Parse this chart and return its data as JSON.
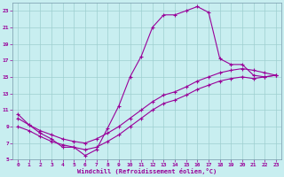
{
  "xlabel": "Windchill (Refroidissement éolien,°C)",
  "bg_color": "#c8eef0",
  "grid_color": "#9ecfcf",
  "line_color": "#990099",
  "xlim": [
    -0.5,
    23.5
  ],
  "ylim": [
    5,
    24
  ],
  "xticks": [
    0,
    1,
    2,
    3,
    4,
    5,
    6,
    7,
    8,
    9,
    10,
    11,
    12,
    13,
    14,
    15,
    16,
    17,
    18,
    19,
    20,
    21,
    22,
    23
  ],
  "yticks": [
    5,
    7,
    9,
    11,
    13,
    15,
    17,
    19,
    21,
    23
  ],
  "curve1_x": [
    0,
    1,
    2,
    3,
    4,
    5,
    6,
    7,
    8,
    9,
    10,
    11,
    12,
    13,
    14,
    15,
    16,
    17,
    18,
    19,
    20,
    21,
    22,
    23
  ],
  "curve1_y": [
    10.5,
    9.2,
    8.2,
    7.5,
    6.5,
    6.5,
    5.5,
    6.2,
    8.8,
    11.5,
    15.0,
    17.5,
    21.0,
    22.5,
    22.5,
    23.0,
    23.5,
    22.8,
    17.2,
    16.5,
    16.5,
    15.2,
    15.0,
    15.2
  ],
  "curve2_x": [
    0,
    1,
    2,
    3,
    4,
    5,
    6,
    7,
    8,
    9,
    10,
    11,
    12,
    13,
    14,
    15,
    16,
    17,
    18,
    19,
    20,
    21,
    22,
    23
  ],
  "curve2_y": [
    10.0,
    9.2,
    8.5,
    8.0,
    7.5,
    7.2,
    7.0,
    7.5,
    8.2,
    9.0,
    10.0,
    11.0,
    12.0,
    12.8,
    13.2,
    13.8,
    14.5,
    15.0,
    15.5,
    15.8,
    16.0,
    15.8,
    15.5,
    15.2
  ],
  "curve3_x": [
    0,
    1,
    2,
    3,
    4,
    5,
    6,
    7,
    8,
    9,
    10,
    11,
    12,
    13,
    14,
    15,
    16,
    17,
    18,
    19,
    20,
    21,
    22,
    23
  ],
  "curve3_y": [
    9.0,
    8.5,
    7.8,
    7.2,
    6.8,
    6.5,
    6.2,
    6.5,
    7.2,
    8.0,
    9.0,
    10.0,
    11.0,
    11.8,
    12.2,
    12.8,
    13.5,
    14.0,
    14.5,
    14.8,
    15.0,
    14.8,
    15.0,
    15.2
  ]
}
